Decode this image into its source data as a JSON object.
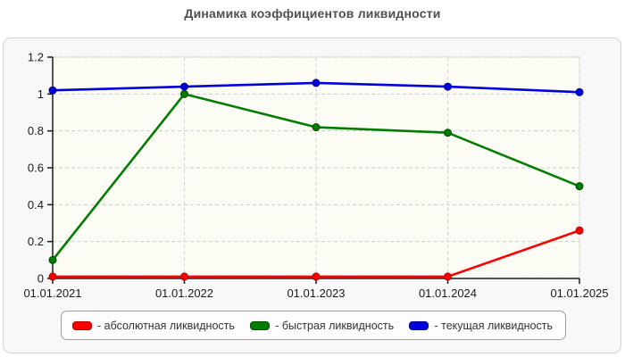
{
  "page": {
    "title": "Динамика коэффициентов ликвидности"
  },
  "chart_data": {
    "type": "line",
    "title": "Динамика коэффициентов ликвидности",
    "x": [
      "01.01.2021",
      "01.01.2022",
      "01.01.2023",
      "01.01.2024",
      "01.01.2025"
    ],
    "series": [
      {
        "name": "абсолютная ликвидность",
        "color": "#ff0000",
        "marker_edge": "#b00000",
        "values": [
          0.01,
          0.01,
          0.01,
          0.01,
          0.26
        ]
      },
      {
        "name": "быстрая ликвидность",
        "color": "#007d00",
        "marker_edge": "#004b00",
        "values": [
          0.1,
          1.0,
          0.82,
          0.79,
          0.5
        ]
      },
      {
        "name": "текущая ликвидность",
        "color": "#0000db",
        "marker_edge": "#000090",
        "values": [
          1.02,
          1.04,
          1.06,
          1.04,
          1.01
        ]
      }
    ],
    "ylim": [
      0,
      1.2
    ],
    "yticks": [
      0,
      0.2,
      0.4,
      0.6,
      0.8,
      1,
      1.2
    ],
    "ytick_labels": [
      "0",
      "0.2",
      "0.4",
      "0.6",
      "0.8",
      "1",
      "1.2"
    ],
    "grid": "dashed horizontal and vertical gridlines",
    "plot_background": "#fbfbef",
    "hatch_color": "#ffffff",
    "gridline_color": "#cccccc",
    "axis_color": "#1a1a1a",
    "legend_position": "bottom"
  },
  "legend": {
    "items": [
      {
        "label": "- абсолютная ликвидность",
        "color": "#ff0000",
        "border": "#b00000"
      },
      {
        "label": "- быстрая ликвидность",
        "color": "#007d00",
        "border": "#004b00"
      },
      {
        "label": "- текущая ликвидность",
        "color": "#0000db",
        "border": "#000090"
      }
    ]
  }
}
